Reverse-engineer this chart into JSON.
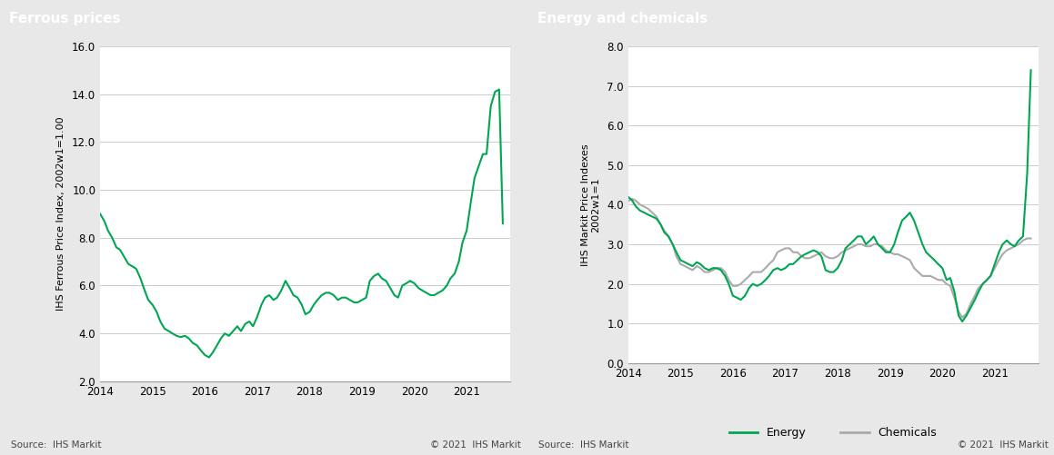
{
  "title_left": "Ferrous prices",
  "title_right": "Energy and chemicals",
  "ylabel_left": "IHS Ferrous Price Index, 2002w1=1.00",
  "ylabel_right": "IHS Markit Price Indexes\n2002w1=1",
  "source_text": "Source:  IHS Markit",
  "copyright_text": "© 2021  IHS Markit",
  "header_color": "#808080",
  "header_text_color": "#ffffff",
  "bg_color": "#e8e8e8",
  "plot_bg_color": "#ffffff",
  "green_color": "#00a651",
  "gray_color": "#aaaaaa",
  "left_ylim": [
    2.0,
    16.0
  ],
  "left_yticks": [
    2.0,
    4.0,
    6.0,
    8.0,
    10.0,
    12.0,
    14.0,
    16.0
  ],
  "right_ylim": [
    0.0,
    8.0
  ],
  "right_yticks": [
    0.0,
    1.0,
    2.0,
    3.0,
    4.0,
    5.0,
    6.0,
    7.0,
    8.0
  ],
  "xlim_left": [
    2014.0,
    2021.83
  ],
  "xlim_right": [
    2014.0,
    2021.83
  ],
  "xticks": [
    2014,
    2015,
    2016,
    2017,
    2018,
    2019,
    2020,
    2021
  ],
  "legend_entries": [
    "Energy",
    "Chemicals"
  ],
  "ferrous_x": [
    2014.0,
    2014.08,
    2014.15,
    2014.23,
    2014.31,
    2014.38,
    2014.46,
    2014.54,
    2014.62,
    2014.69,
    2014.77,
    2014.85,
    2014.92,
    2015.0,
    2015.08,
    2015.15,
    2015.23,
    2015.31,
    2015.38,
    2015.46,
    2015.54,
    2015.62,
    2015.69,
    2015.77,
    2015.85,
    2015.92,
    2016.0,
    2016.08,
    2016.15,
    2016.23,
    2016.31,
    2016.38,
    2016.46,
    2016.54,
    2016.62,
    2016.69,
    2016.77,
    2016.85,
    2016.92,
    2017.0,
    2017.08,
    2017.15,
    2017.23,
    2017.31,
    2017.38,
    2017.46,
    2017.54,
    2017.62,
    2017.69,
    2017.77,
    2017.85,
    2017.92,
    2018.0,
    2018.08,
    2018.15,
    2018.23,
    2018.31,
    2018.38,
    2018.46,
    2018.54,
    2018.62,
    2018.69,
    2018.77,
    2018.85,
    2018.92,
    2019.0,
    2019.08,
    2019.15,
    2019.23,
    2019.31,
    2019.38,
    2019.46,
    2019.54,
    2019.62,
    2019.69,
    2019.77,
    2019.85,
    2019.92,
    2020.0,
    2020.08,
    2020.15,
    2020.23,
    2020.31,
    2020.38,
    2020.46,
    2020.54,
    2020.62,
    2020.69,
    2020.77,
    2020.85,
    2020.92,
    2021.0,
    2021.08,
    2021.15,
    2021.23,
    2021.31,
    2021.38,
    2021.46,
    2021.54,
    2021.62,
    2021.69
  ],
  "ferrous_y": [
    9.0,
    8.7,
    8.3,
    8.0,
    7.6,
    7.5,
    7.2,
    6.9,
    6.8,
    6.7,
    6.3,
    5.8,
    5.4,
    5.2,
    4.9,
    4.5,
    4.2,
    4.1,
    4.0,
    3.9,
    3.85,
    3.9,
    3.8,
    3.6,
    3.5,
    3.3,
    3.1,
    3.0,
    3.2,
    3.5,
    3.8,
    4.0,
    3.9,
    4.1,
    4.3,
    4.1,
    4.4,
    4.5,
    4.3,
    4.7,
    5.2,
    5.5,
    5.6,
    5.4,
    5.5,
    5.8,
    6.2,
    5.9,
    5.6,
    5.5,
    5.2,
    4.8,
    4.9,
    5.2,
    5.4,
    5.6,
    5.7,
    5.7,
    5.6,
    5.4,
    5.5,
    5.5,
    5.4,
    5.3,
    5.3,
    5.4,
    5.5,
    6.2,
    6.4,
    6.5,
    6.3,
    6.2,
    5.9,
    5.6,
    5.5,
    6.0,
    6.1,
    6.2,
    6.1,
    5.9,
    5.8,
    5.7,
    5.6,
    5.6,
    5.7,
    5.8,
    6.0,
    6.3,
    6.5,
    7.0,
    7.8,
    8.3,
    9.5,
    10.5,
    11.0,
    11.5,
    11.5,
    13.5,
    14.1,
    14.2,
    8.6
  ],
  "energy_x": [
    2014.0,
    2014.08,
    2014.15,
    2014.23,
    2014.31,
    2014.38,
    2014.46,
    2014.54,
    2014.62,
    2014.69,
    2014.77,
    2014.85,
    2014.92,
    2015.0,
    2015.08,
    2015.15,
    2015.23,
    2015.31,
    2015.38,
    2015.46,
    2015.54,
    2015.62,
    2015.69,
    2015.77,
    2015.85,
    2015.92,
    2016.0,
    2016.08,
    2016.15,
    2016.23,
    2016.31,
    2016.38,
    2016.46,
    2016.54,
    2016.62,
    2016.69,
    2016.77,
    2016.85,
    2016.92,
    2017.0,
    2017.08,
    2017.15,
    2017.23,
    2017.31,
    2017.38,
    2017.46,
    2017.54,
    2017.62,
    2017.69,
    2017.77,
    2017.85,
    2017.92,
    2018.0,
    2018.08,
    2018.15,
    2018.23,
    2018.31,
    2018.38,
    2018.46,
    2018.54,
    2018.62,
    2018.69,
    2018.77,
    2018.85,
    2018.92,
    2019.0,
    2019.08,
    2019.15,
    2019.23,
    2019.31,
    2019.38,
    2019.46,
    2019.54,
    2019.62,
    2019.69,
    2019.77,
    2019.85,
    2019.92,
    2020.0,
    2020.08,
    2020.15,
    2020.23,
    2020.31,
    2020.38,
    2020.46,
    2020.54,
    2020.62,
    2020.69,
    2020.77,
    2020.85,
    2020.92,
    2021.0,
    2021.08,
    2021.15,
    2021.23,
    2021.31,
    2021.38,
    2021.46,
    2021.54,
    2021.62,
    2021.69
  ],
  "energy_y": [
    4.2,
    4.1,
    3.95,
    3.85,
    3.8,
    3.75,
    3.7,
    3.65,
    3.5,
    3.3,
    3.2,
    3.0,
    2.8,
    2.6,
    2.55,
    2.5,
    2.45,
    2.55,
    2.5,
    2.4,
    2.35,
    2.4,
    2.4,
    2.35,
    2.2,
    2.0,
    1.7,
    1.65,
    1.6,
    1.7,
    1.9,
    2.0,
    1.95,
    2.0,
    2.1,
    2.2,
    2.35,
    2.4,
    2.35,
    2.4,
    2.5,
    2.5,
    2.6,
    2.7,
    2.75,
    2.8,
    2.85,
    2.8,
    2.7,
    2.35,
    2.3,
    2.3,
    2.4,
    2.6,
    2.9,
    3.0,
    3.1,
    3.2,
    3.2,
    3.0,
    3.1,
    3.2,
    3.0,
    2.9,
    2.8,
    2.8,
    3.0,
    3.3,
    3.6,
    3.7,
    3.8,
    3.6,
    3.3,
    3.0,
    2.8,
    2.7,
    2.6,
    2.5,
    2.4,
    2.1,
    2.15,
    1.8,
    1.2,
    1.05,
    1.2,
    1.4,
    1.6,
    1.8,
    2.0,
    2.1,
    2.2,
    2.5,
    2.8,
    3.0,
    3.1,
    3.0,
    2.95,
    3.1,
    3.2,
    4.8,
    7.4
  ],
  "chemicals_x": [
    2014.0,
    2014.08,
    2014.15,
    2014.23,
    2014.31,
    2014.38,
    2014.46,
    2014.54,
    2014.62,
    2014.69,
    2014.77,
    2014.85,
    2014.92,
    2015.0,
    2015.08,
    2015.15,
    2015.23,
    2015.31,
    2015.38,
    2015.46,
    2015.54,
    2015.62,
    2015.69,
    2015.77,
    2015.85,
    2015.92,
    2016.0,
    2016.08,
    2016.15,
    2016.23,
    2016.31,
    2016.38,
    2016.46,
    2016.54,
    2016.62,
    2016.69,
    2016.77,
    2016.85,
    2016.92,
    2017.0,
    2017.08,
    2017.15,
    2017.23,
    2017.31,
    2017.38,
    2017.46,
    2017.54,
    2017.62,
    2017.69,
    2017.77,
    2017.85,
    2017.92,
    2018.0,
    2018.08,
    2018.15,
    2018.23,
    2018.31,
    2018.38,
    2018.46,
    2018.54,
    2018.62,
    2018.69,
    2018.77,
    2018.85,
    2018.92,
    2019.0,
    2019.08,
    2019.15,
    2019.23,
    2019.31,
    2019.38,
    2019.46,
    2019.54,
    2019.62,
    2019.69,
    2019.77,
    2019.85,
    2019.92,
    2020.0,
    2020.08,
    2020.15,
    2020.23,
    2020.31,
    2020.38,
    2020.46,
    2020.54,
    2020.62,
    2020.69,
    2020.77,
    2020.85,
    2020.92,
    2021.0,
    2021.08,
    2021.15,
    2021.23,
    2021.31,
    2021.38,
    2021.46,
    2021.54,
    2021.62,
    2021.69
  ],
  "chemicals_y": [
    4.1,
    4.15,
    4.1,
    4.0,
    3.95,
    3.9,
    3.8,
    3.7,
    3.5,
    3.35,
    3.2,
    3.0,
    2.7,
    2.5,
    2.45,
    2.4,
    2.35,
    2.45,
    2.4,
    2.3,
    2.3,
    2.35,
    2.4,
    2.4,
    2.3,
    2.1,
    1.95,
    1.95,
    2.0,
    2.1,
    2.2,
    2.3,
    2.3,
    2.3,
    2.4,
    2.5,
    2.6,
    2.8,
    2.85,
    2.9,
    2.9,
    2.8,
    2.8,
    2.7,
    2.65,
    2.65,
    2.7,
    2.75,
    2.8,
    2.7,
    2.65,
    2.65,
    2.7,
    2.8,
    2.85,
    2.9,
    2.95,
    3.0,
    3.0,
    2.95,
    2.95,
    3.0,
    3.0,
    2.95,
    2.85,
    2.8,
    2.75,
    2.75,
    2.7,
    2.65,
    2.6,
    2.4,
    2.3,
    2.2,
    2.2,
    2.2,
    2.15,
    2.1,
    2.1,
    2.0,
    1.95,
    1.65,
    1.3,
    1.15,
    1.25,
    1.5,
    1.7,
    1.9,
    2.0,
    2.1,
    2.2,
    2.4,
    2.6,
    2.75,
    2.85,
    2.9,
    2.95,
    3.0,
    3.1,
    3.15,
    3.15
  ]
}
